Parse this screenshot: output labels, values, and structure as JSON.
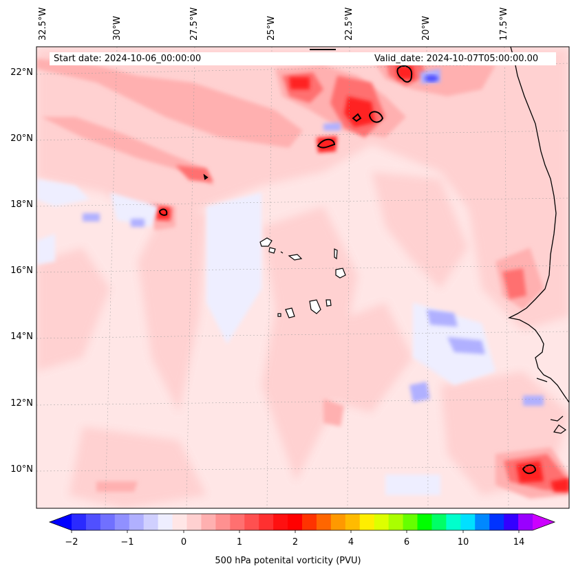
{
  "map": {
    "start_date": "Start date: 2024-10-06_00:00:00",
    "valid_date": "Valid_date: 2024-10-07T05:00:00.00",
    "lon_labels": [
      "32.5°W",
      "30°W",
      "27.5°W",
      "25°W",
      "22.5°W",
      "20°W",
      "17.5°W"
    ],
    "lat_labels": [
      "22°N",
      "20°N",
      "18°N",
      "16°N",
      "14°N",
      "12°N",
      "10°N"
    ]
  },
  "colorbar": {
    "label": "500 hPa potenital vorticity (PVU)",
    "ticks": [
      "−2",
      "−1",
      "0",
      "1",
      "2",
      "4",
      "6",
      "10",
      "14"
    ],
    "colors": [
      "#0000ff",
      "#2a2aff",
      "#5050ff",
      "#7070ff",
      "#9090ff",
      "#b0b0ff",
      "#d0d0ff",
      "#eeeeff",
      "#ffe6e6",
      "#ffd0d0",
      "#ffb0b0",
      "#ff9090",
      "#ff7070",
      "#ff5050",
      "#ff3030",
      "#ff1010",
      "#ff0000",
      "#ff3300",
      "#ff6600",
      "#ff9900",
      "#ffbb00",
      "#ffee00",
      "#ddff00",
      "#aaff00",
      "#66ff00",
      "#00ff00",
      "#00ff66",
      "#00ffcc",
      "#00e0ff",
      "#0088ff",
      "#0033ff",
      "#3300ff",
      "#9900ff",
      "#cc00ff"
    ]
  }
}
